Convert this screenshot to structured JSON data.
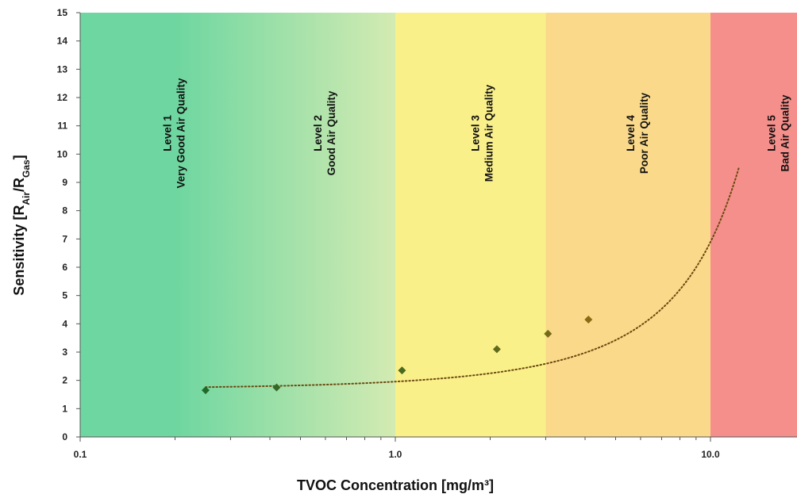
{
  "chart_data": {
    "type": "scatter",
    "xlabel": "TVOC Concentration [mg/m³]",
    "ylabel": {
      "main": "Sensitivity [R",
      "sub1": "Air",
      "mid": "/R",
      "sub2": "Gas",
      "end": "]"
    },
    "x_scale": "log",
    "xlim": [
      0.1,
      20
    ],
    "ylim": [
      0,
      15
    ],
    "x_ticks": [
      {
        "value": 0.1,
        "label": "0.1"
      },
      {
        "value": 1,
        "label": "1.0"
      },
      {
        "value": 10,
        "label": "10.0"
      }
    ],
    "y_ticks": [
      0,
      1,
      2,
      3,
      4,
      5,
      6,
      7,
      8,
      9,
      10,
      11,
      12,
      13,
      14,
      15
    ],
    "zones": [
      {
        "from": 0.1,
        "to": 1,
        "line1": "Level 1",
        "line2": "Very Good Air Quality",
        "label_x": 0.2,
        "color_start": "#6ed6a0",
        "color_end": "#d3ebb2"
      },
      {
        "from": 0.1,
        "to": 1,
        "line1": "Level 2",
        "line2": "Good Air Quality",
        "label_x": 0.6,
        "color_start": "",
        "color_end": ""
      },
      {
        "from": 1,
        "to": 3,
        "line1": "Level 3",
        "line2": "Medium Air Quality",
        "label_x": 1.9,
        "color_start": "#faf08a",
        "color_end": "#faf08a"
      },
      {
        "from": 3,
        "to": 10,
        "line1": "Level 4",
        "line2": "Poor Air Quality",
        "label_x": 5.9,
        "color_start": "#fad98a",
        "color_end": "#fad98a"
      },
      {
        "from": 10,
        "to": 20,
        "line1": "Level 5",
        "line2": "Bad Air Quality",
        "label_x": 16.5,
        "color_start": "#f58f8b",
        "color_end": "#f58f8b"
      }
    ],
    "series": [
      {
        "points": [
          {
            "x": 0.25,
            "y": 1.65
          },
          {
            "x": 0.42,
            "y": 1.75
          },
          {
            "x": 1.05,
            "y": 2.35
          },
          {
            "x": 2.1,
            "y": 3.1
          },
          {
            "x": 3.05,
            "y": 3.65
          },
          {
            "x": 4.1,
            "y": 4.15
          }
        ],
        "marker_color_start": "#1f6a2a",
        "marker_color_end": "#8a6a12"
      }
    ],
    "trendline": {
      "type": "exponential",
      "a": 1.7,
      "b": 0.14,
      "x_range": [
        0.25,
        12.3
      ],
      "color": "#6b4a10"
    }
  }
}
